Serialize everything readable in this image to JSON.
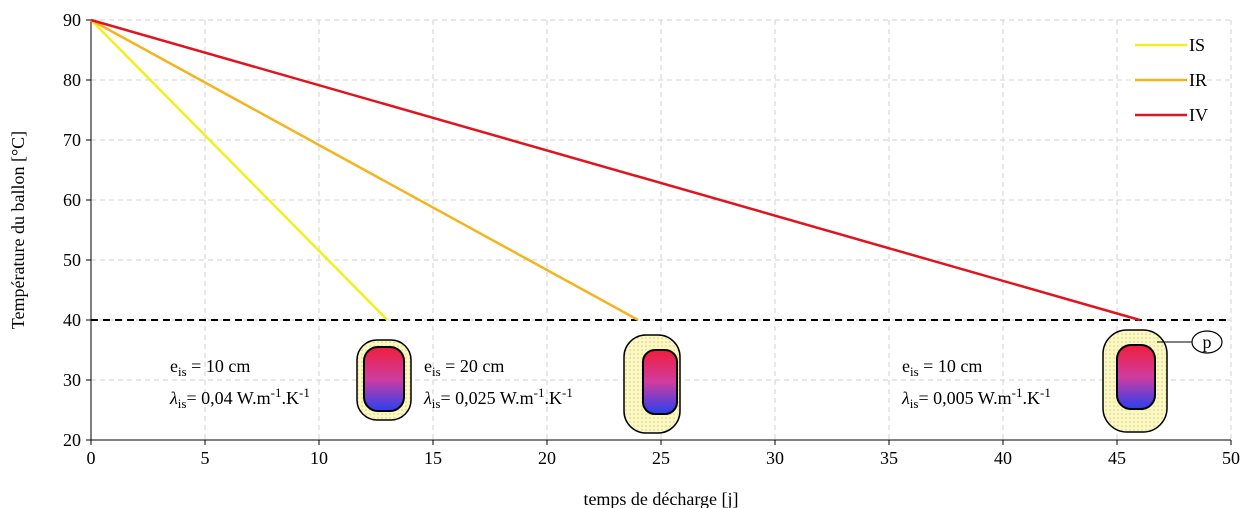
{
  "chart_data": {
    "type": "line",
    "x_label": "temps de décharge [j]",
    "y_label": "Température du ballon [°C]",
    "series": [
      {
        "name": "IS",
        "color": "#f5ee1e",
        "x": [
          0,
          13
        ],
        "values": [
          90,
          40
        ]
      },
      {
        "name": "IR",
        "color": "#f5b41e",
        "x": [
          0,
          24
        ],
        "values": [
          90,
          40
        ]
      },
      {
        "name": "IV",
        "color": "#e0141e",
        "x": [
          0,
          46
        ],
        "values": [
          90,
          40
        ]
      }
    ],
    "xlim": [
      0,
      50
    ],
    "xticks": [
      0,
      5,
      10,
      15,
      20,
      25,
      30,
      35,
      40,
      45,
      50
    ],
    "ylim": [
      20,
      90
    ],
    "yticks": [
      20,
      30,
      40,
      50,
      60,
      70,
      80,
      90
    ],
    "grid": true,
    "legend": "top-right",
    "reference_line": 40,
    "annotations": [
      {
        "line1": [
          {
            "t": "e",
            "s": "base"
          },
          {
            "t": "is",
            "s": "sub"
          },
          {
            "t": " = 10 cm",
            "s": "base"
          }
        ],
        "line2": [
          {
            "t": "λ",
            "s": "italic"
          },
          {
            "t": "is",
            "s": "sub"
          },
          {
            "t": "= 0,04 W.m",
            "s": "base"
          },
          {
            "t": "-1",
            "s": "sup"
          },
          {
            "t": ".K",
            "s": "base"
          },
          {
            "t": "-1",
            "s": "sup"
          }
        ]
      },
      {
        "line1": [
          {
            "t": "e",
            "s": "base"
          },
          {
            "t": "is",
            "s": "sub"
          },
          {
            "t": " = 20 cm",
            "s": "base"
          }
        ],
        "line2": [
          {
            "t": "λ",
            "s": "italic"
          },
          {
            "t": "is",
            "s": "sub"
          },
          {
            "t": "= 0,025 W.m",
            "s": "base"
          },
          {
            "t": "-1",
            "s": "sup"
          },
          {
            "t": ".K",
            "s": "base"
          },
          {
            "t": "-1",
            "s": "sup"
          }
        ]
      },
      {
        "line1": [
          {
            "t": "e",
            "s": "base"
          },
          {
            "t": "is",
            "s": "sub"
          },
          {
            "t": " = 10 cm",
            "s": "base"
          }
        ],
        "line2": [
          {
            "t": "λ",
            "s": "italic"
          },
          {
            "t": "is",
            "s": "sub"
          },
          {
            "t": "= 0,005 W.m",
            "s": "base"
          },
          {
            "t": "-1",
            "s": "sup"
          },
          {
            "t": ".K",
            "s": "base"
          },
          {
            "t": "-1",
            "s": "sup"
          }
        ]
      }
    ],
    "tank_label": "p"
  }
}
